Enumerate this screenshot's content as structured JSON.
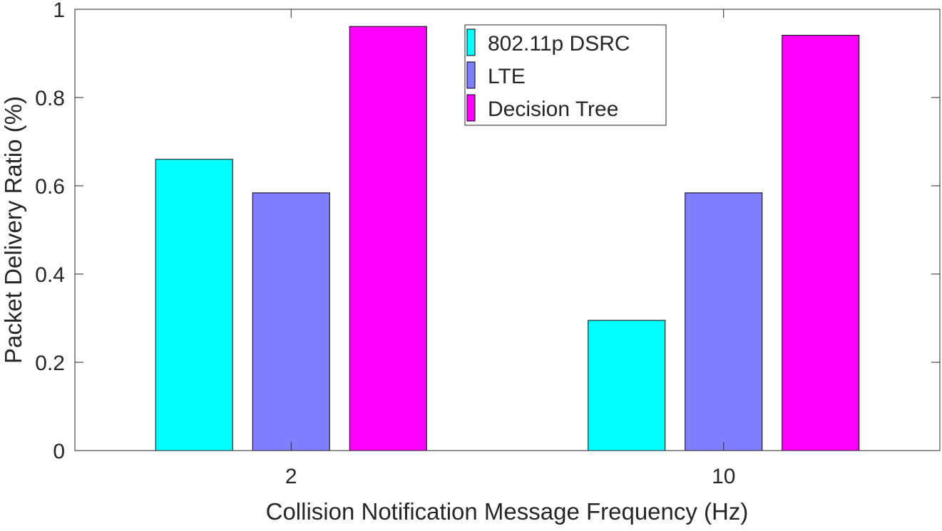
{
  "chart_data": {
    "type": "bar",
    "title": "",
    "xlabel": "Collision Notification Message Frequency (Hz)",
    "ylabel": "Packet Delivery Ratio (%)",
    "categories": [
      "2",
      "10"
    ],
    "ylim": [
      0,
      1
    ],
    "yticks": [
      "0",
      "0.2",
      "0.4",
      "0.6",
      "0.8",
      "1"
    ],
    "grid": false,
    "legend_position": "top-center",
    "series": [
      {
        "name": "802.11p DSRC",
        "color": "#00ffff",
        "values": [
          0.66,
          0.295
        ]
      },
      {
        "name": "LTE",
        "color": "#8080ff",
        "values": [
          0.584,
          0.584
        ]
      },
      {
        "name": "Decision Tree",
        "color": "#ff00ff",
        "values": [
          0.961,
          0.941
        ]
      }
    ]
  }
}
